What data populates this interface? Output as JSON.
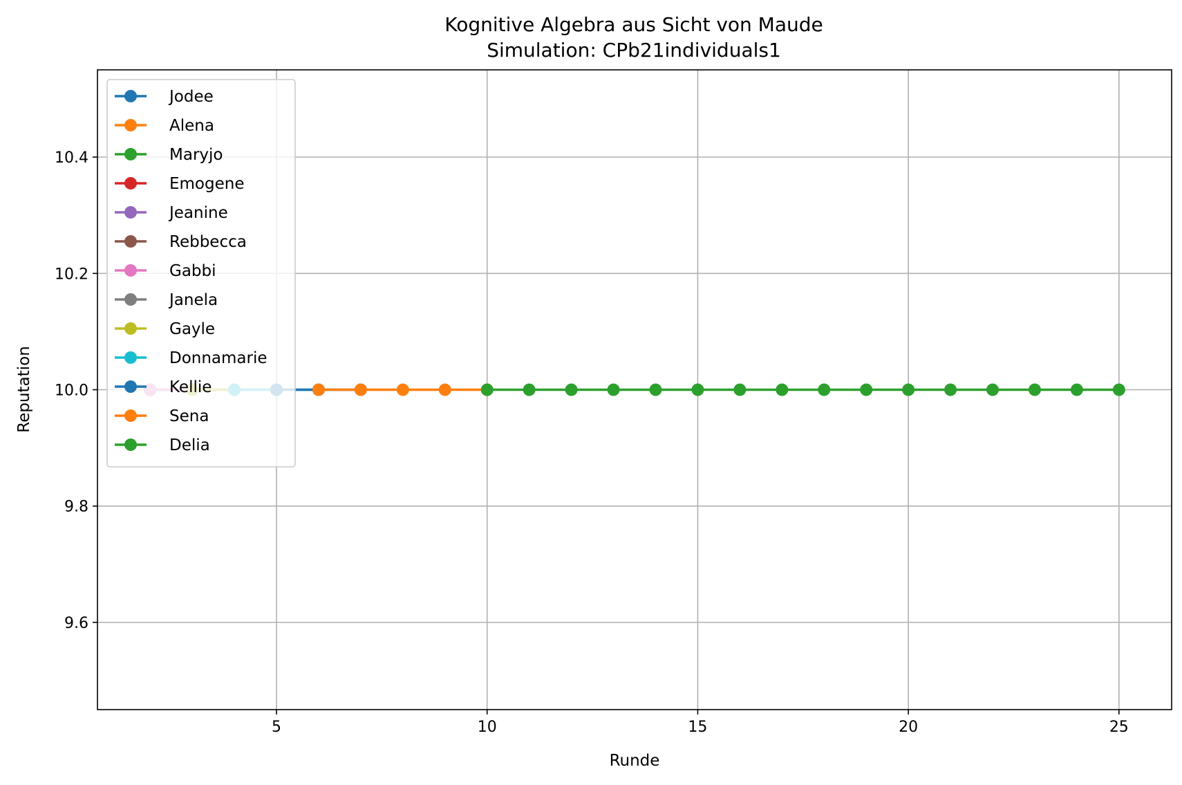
{
  "chart_data": {
    "type": "line",
    "title": "Kognitive Algebra aus Sicht von Maude",
    "subtitle": "Simulation: CPb21individuals1",
    "xlabel": "Runde",
    "ylabel": "Reputation",
    "xlim": [
      0.75,
      26.25
    ],
    "ylim": [
      9.45,
      10.55
    ],
    "xticks": [
      5,
      10,
      15,
      20,
      25
    ],
    "xtick_labels": [
      "5",
      "10",
      "15",
      "20",
      "25"
    ],
    "yticks": [
      9.6,
      9.8,
      10.0,
      10.2,
      10.4
    ],
    "ytick_labels": [
      "9.6",
      "9.8",
      "10.0",
      "10.2",
      "10.4"
    ],
    "grid": true,
    "legend_position": "upper-left",
    "series": [
      {
        "name": "Jodee",
        "color": "#1f77b4",
        "x": [
          2
        ],
        "y": [
          10.0
        ]
      },
      {
        "name": "Alena",
        "color": "#ff7f0e",
        "x": [
          2
        ],
        "y": [
          10.0
        ]
      },
      {
        "name": "Maryjo",
        "color": "#2ca02c",
        "x": [
          2
        ],
        "y": [
          10.0
        ]
      },
      {
        "name": "Emogene",
        "color": "#d62728",
        "x": [
          2,
          3
        ],
        "y": [
          10.0,
          10.0
        ]
      },
      {
        "name": "Jeanine",
        "color": "#9467bd",
        "x": [
          2,
          3
        ],
        "y": [
          10.0,
          10.0
        ]
      },
      {
        "name": "Rebbecca",
        "color": "#8c564b",
        "x": [
          2,
          3
        ],
        "y": [
          10.0,
          10.0
        ]
      },
      {
        "name": "Gabbi",
        "color": "#e377c2",
        "x": [
          2,
          3
        ],
        "y": [
          10.0,
          10.0
        ]
      },
      {
        "name": "Janela",
        "color": "#7f7f7f",
        "x": [
          3,
          4
        ],
        "y": [
          10.0,
          10.0
        ]
      },
      {
        "name": "Gayle",
        "color": "#bcbd22",
        "x": [
          3,
          4,
          5
        ],
        "y": [
          10.0,
          10.0,
          10.0
        ]
      },
      {
        "name": "Donnamarie",
        "color": "#17becf",
        "x": [
          4,
          5,
          6
        ],
        "y": [
          10.0,
          10.0,
          10.0
        ]
      },
      {
        "name": "Kellie",
        "color": "#1f77b4",
        "x": [
          5,
          6,
          7
        ],
        "y": [
          10.0,
          10.0,
          10.0
        ]
      },
      {
        "name": "Sena",
        "color": "#ff7f0e",
        "x": [
          6,
          7,
          8,
          9,
          10
        ],
        "y": [
          10.0,
          10.0,
          10.0,
          10.0,
          10.0
        ]
      },
      {
        "name": "Delia",
        "color": "#2ca02c",
        "x": [
          10,
          11,
          12,
          13,
          14,
          15,
          16,
          17,
          18,
          19,
          20,
          21,
          22,
          23,
          24,
          25
        ],
        "y": [
          10.0,
          10.0,
          10.0,
          10.0,
          10.0,
          10.0,
          10.0,
          10.0,
          10.0,
          10.0,
          10.0,
          10.0,
          10.0,
          10.0,
          10.0,
          10.0
        ]
      }
    ]
  }
}
